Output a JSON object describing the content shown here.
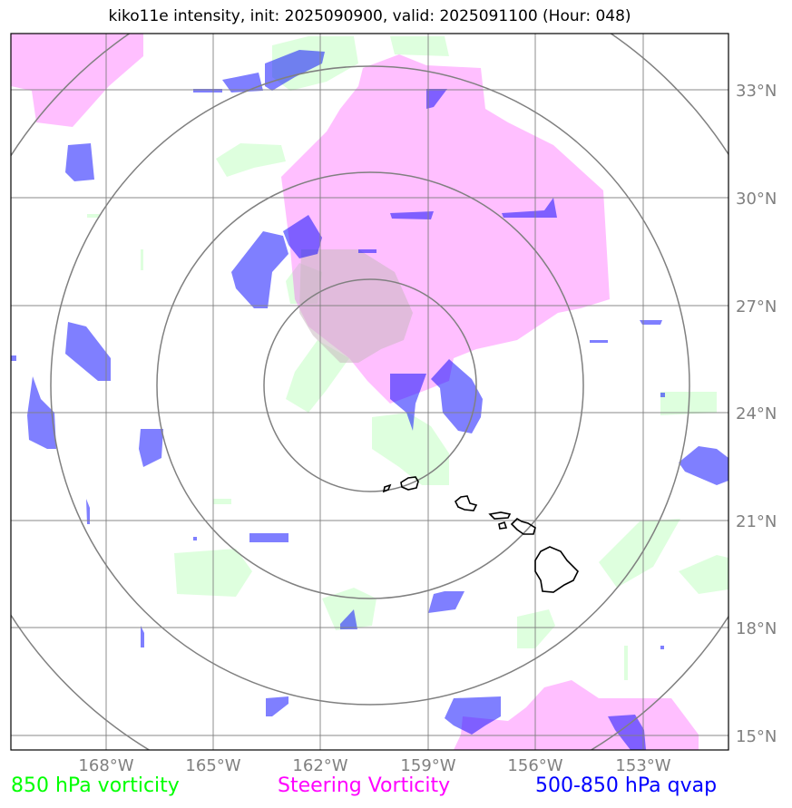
{
  "title": "kiko11e intensity, init: 2025090900, valid: 2025091100 (Hour: 048)",
  "lon_labels": [
    "168°W",
    "165°W",
    "162°W",
    "159°W",
    "156°W",
    "153°W"
  ],
  "lat_labels": [
    "33°N",
    "30°N",
    "27°N",
    "24°N",
    "21°N",
    "18°N",
    "15°N"
  ],
  "legend": {
    "vort850": "850 hPa vorticity",
    "steering": "Steering Vorticity",
    "qvap": "500-850 hPa qvap"
  },
  "colors": {
    "vort850": "#00ff00",
    "steering": "#ff00ff",
    "qvap": "#0000ff",
    "grid": "#808080"
  },
  "islands": [
    "Kauai",
    "Oahu",
    "Molokai",
    "Maui",
    "Lanai",
    "Kahoolawe",
    "Hawaii"
  ]
}
